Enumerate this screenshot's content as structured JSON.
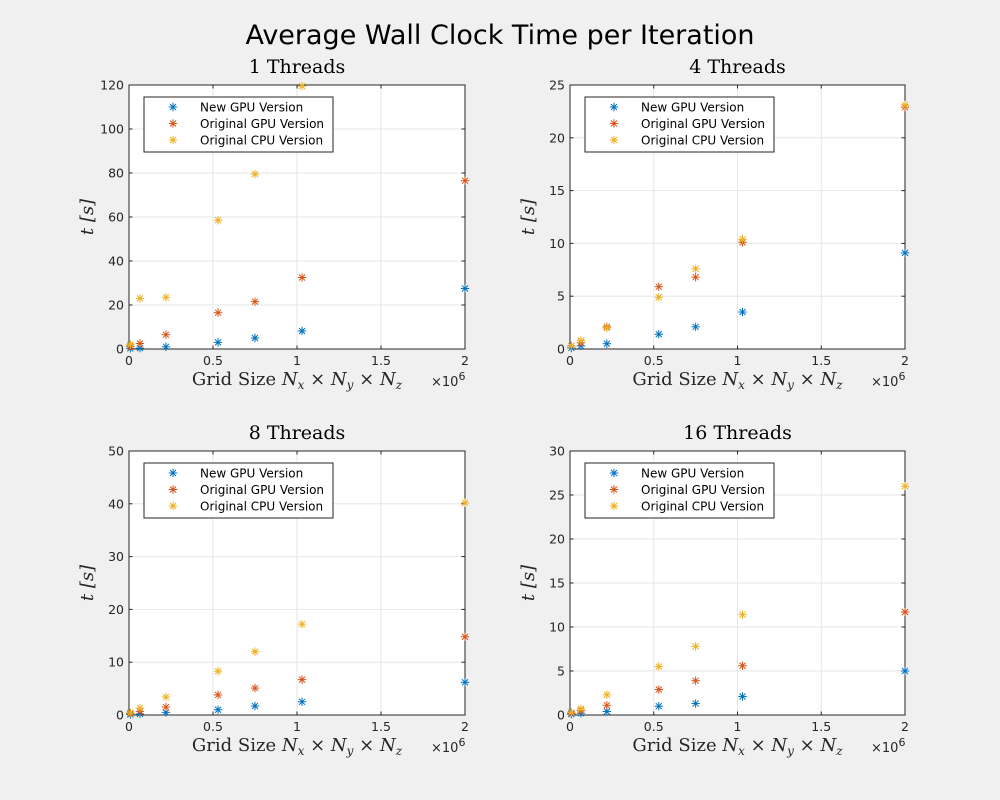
{
  "figure": {
    "title": "Average Wall Clock Time per Iteration"
  },
  "chart_data": [
    {
      "type": "scatter",
      "title": "1 Threads",
      "xlabel": "Grid Size N_x × N_y × N_z",
      "xlabel_parts": [
        "Grid Size ",
        "N",
        "x",
        " × ",
        "N",
        "y",
        " × ",
        "N",
        "z"
      ],
      "ylabel": "t [s]",
      "x_exponent": "×10^6",
      "xlim": [
        0,
        2
      ],
      "ylim": [
        0,
        120
      ],
      "xticks": [
        "0",
        "0.5",
        "1",
        "1.5",
        "2"
      ],
      "xtick_values": [
        0,
        0.5,
        1,
        1.5,
        2
      ],
      "yticks": [
        "0",
        "20",
        "40",
        "60",
        "80",
        "100",
        "120"
      ],
      "ytick_values": [
        0,
        20,
        40,
        60,
        80,
        100,
        120
      ],
      "grid": true,
      "legend_placement": "top-left",
      "x": [
        0.008,
        0.065,
        0.22,
        0.53,
        0.75,
        1.03,
        2.0
      ],
      "series": [
        {
          "name": "New GPU Version",
          "color": "#0072bd",
          "values": [
            0.3,
            0.4,
            1.0,
            3.0,
            5.0,
            8.2,
            27.5
          ]
        },
        {
          "name": "Original GPU Version",
          "color": "#d95319",
          "values": [
            1.2,
            2.5,
            6.5,
            16.5,
            21.5,
            32.5,
            76.5
          ]
        },
        {
          "name": "Original CPU Version",
          "color": "#edb120",
          "values": [
            2.0,
            23.0,
            23.5,
            58.5,
            79.5,
            119.5,
            null
          ]
        }
      ]
    },
    {
      "type": "scatter",
      "title": "4 Threads",
      "xlabel": "Grid Size N_x × N_y × N_z",
      "xlabel_parts": [
        "Grid Size ",
        "N",
        "x",
        " × ",
        "N",
        "y",
        " × ",
        "N",
        "z"
      ],
      "ylabel": "t [s]",
      "x_exponent": "×10^6",
      "xlim": [
        0,
        2
      ],
      "ylim": [
        0,
        25
      ],
      "xticks": [
        "0",
        "0.5",
        "1",
        "1.5",
        "2"
      ],
      "xtick_values": [
        0,
        0.5,
        1,
        1.5,
        2
      ],
      "yticks": [
        "0",
        "5",
        "10",
        "15",
        "20",
        "25"
      ],
      "ytick_values": [
        0,
        5,
        10,
        15,
        20,
        25
      ],
      "grid": true,
      "legend_placement": "top-left",
      "x": [
        0.008,
        0.065,
        0.22,
        0.53,
        0.75,
        1.03,
        2.0
      ],
      "series": [
        {
          "name": "New GPU Version",
          "color": "#0072bd",
          "values": [
            0.1,
            0.3,
            0.5,
            1.4,
            2.1,
            3.5,
            9.1
          ]
        },
        {
          "name": "Original GPU Version",
          "color": "#d95319",
          "values": [
            0.3,
            0.6,
            2.1,
            5.9,
            6.8,
            10.1,
            22.9
          ]
        },
        {
          "name": "Original CPU Version",
          "color": "#edb120",
          "values": [
            0.3,
            0.8,
            2.0,
            4.9,
            7.6,
            10.4,
            23.1
          ]
        }
      ]
    },
    {
      "type": "scatter",
      "title": "8 Threads",
      "xlabel": "Grid Size N_x × N_y × N_z",
      "xlabel_parts": [
        "Grid Size ",
        "N",
        "x",
        " × ",
        "N",
        "y",
        " × ",
        "N",
        "z"
      ],
      "ylabel": "t [s]",
      "x_exponent": "×10^6",
      "xlim": [
        0,
        2
      ],
      "ylim": [
        0,
        50
      ],
      "xticks": [
        "0",
        "0.5",
        "1",
        "1.5",
        "2"
      ],
      "xtick_values": [
        0,
        0.5,
        1,
        1.5,
        2
      ],
      "yticks": [
        "0",
        "10",
        "20",
        "30",
        "40",
        "50"
      ],
      "ytick_values": [
        0,
        10,
        20,
        30,
        40,
        50
      ],
      "grid": true,
      "legend_placement": "top-left",
      "x": [
        0.008,
        0.065,
        0.22,
        0.53,
        0.75,
        1.03,
        2.0
      ],
      "series": [
        {
          "name": "New GPU Version",
          "color": "#0072bd",
          "values": [
            0.1,
            0.2,
            0.5,
            1.0,
            1.7,
            2.5,
            6.2
          ]
        },
        {
          "name": "Original GPU Version",
          "color": "#d95319",
          "values": [
            0.3,
            0.7,
            1.5,
            3.8,
            5.1,
            6.7,
            14.8
          ]
        },
        {
          "name": "Original CPU Version",
          "color": "#edb120",
          "values": [
            0.4,
            1.3,
            3.4,
            8.3,
            12.0,
            17.2,
            40.2
          ]
        }
      ]
    },
    {
      "type": "scatter",
      "title": "16 Threads",
      "xlabel": "Grid Size N_x × N_y × N_z",
      "xlabel_parts": [
        "Grid Size ",
        "N",
        "x",
        " × ",
        "N",
        "y",
        " × ",
        "N",
        "z"
      ],
      "ylabel": "t [s]",
      "x_exponent": "×10^6",
      "xlim": [
        0,
        2
      ],
      "ylim": [
        0,
        30
      ],
      "xticks": [
        "0",
        "0.5",
        "1",
        "1.5",
        "2"
      ],
      "xtick_values": [
        0,
        0.5,
        1,
        1.5,
        2
      ],
      "yticks": [
        "0",
        "5",
        "10",
        "15",
        "20",
        "25",
        "30"
      ],
      "ytick_values": [
        0,
        5,
        10,
        15,
        20,
        25,
        30
      ],
      "grid": true,
      "legend_placement": "top-left",
      "x": [
        0.008,
        0.065,
        0.22,
        0.53,
        0.75,
        1.03,
        2.0
      ],
      "series": [
        {
          "name": "New GPU Version",
          "color": "#0072bd",
          "values": [
            0.1,
            0.2,
            0.4,
            1.0,
            1.3,
            2.1,
            5.0
          ]
        },
        {
          "name": "Original GPU Version",
          "color": "#d95319",
          "values": [
            0.2,
            0.5,
            1.1,
            2.9,
            3.9,
            5.6,
            11.7
          ]
        },
        {
          "name": "Original CPU Version",
          "color": "#edb120",
          "values": [
            0.3,
            0.7,
            2.3,
            5.5,
            7.8,
            11.4,
            26.0
          ]
        }
      ]
    }
  ]
}
